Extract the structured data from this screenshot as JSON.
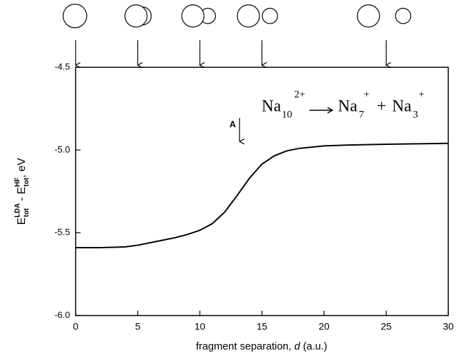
{
  "chart_data": {
    "type": "line",
    "x": [
      0,
      2,
      4,
      5,
      6,
      7,
      8,
      9,
      10,
      11,
      12,
      13,
      14,
      15,
      16,
      17,
      18,
      20,
      22,
      25,
      28,
      30
    ],
    "series": [
      {
        "color": "#000000",
        "values": [
          -5.59,
          -5.59,
          -5.585,
          -5.575,
          -5.56,
          -5.545,
          -5.53,
          -5.51,
          -5.485,
          -5.445,
          -5.375,
          -5.275,
          -5.17,
          -5.085,
          -5.035,
          -5.005,
          -4.99,
          -4.975,
          -4.97,
          -4.965,
          -4.962,
          -4.96
        ]
      }
    ],
    "xlim": [
      0,
      30
    ],
    "xticks": [
      0,
      5,
      10,
      15,
      20,
      25,
      30
    ],
    "ylim": [
      -6,
      -4.5
    ],
    "yticks": [
      {
        "value": -6,
        "label": "-6.0"
      },
      -5.5,
      {
        "value": -5,
        "label": "-5.0"
      },
      -4.5
    ],
    "xlabel": {
      "text": "fragment separation, ",
      "italic": "d",
      "unit": " (a.u.)"
    },
    "ylabel": {
      "e1": "E",
      "sup1": "LDA",
      "sub1": "tot",
      "mid": " - E",
      "sup2": "HF",
      "sub2": "tot",
      "unit": ", eV"
    },
    "annotation": {
      "text": "A",
      "x": 13.2
    },
    "top_markers": [
      0,
      5,
      10,
      15,
      25
    ],
    "reaction": {
      "lhs": "Na",
      "lhs_sub": "10",
      "lhs_sup": "2+",
      "p1": "Na",
      "p1_sub": "7",
      "p1_sup": "+",
      "plus": "+",
      "p2": "Na",
      "p2_sub": "3",
      "p2_sup": "+"
    }
  }
}
